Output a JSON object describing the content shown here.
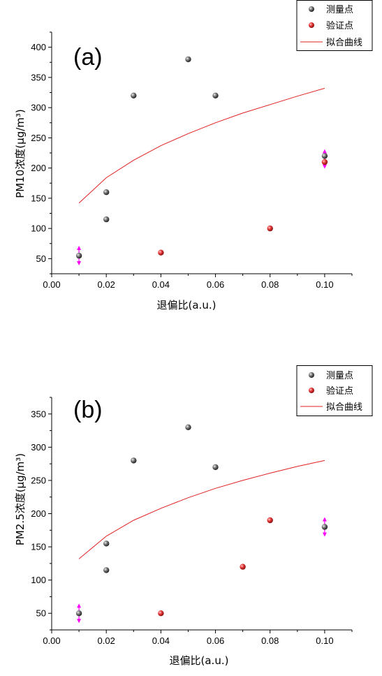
{
  "colors": {
    "measured": "#555555",
    "validation": "#e83a3a",
    "fit": "#e02020",
    "error": "#ff00ff"
  },
  "chart_data": [
    {
      "type": "scatter",
      "panel_label": "(a)",
      "xlabel": "退偏比(a.u.)",
      "ylabel": "PM10浓度(μg/m³)",
      "xlim": [
        0.0,
        0.11
      ],
      "ylim": [
        25,
        425
      ],
      "xticks": [
        "0.00",
        "0.02",
        "0.04",
        "0.06",
        "0.08",
        "0.10"
      ],
      "xtick_values": [
        0.0,
        0.02,
        0.04,
        0.06,
        0.08,
        0.1
      ],
      "yticks": [
        "50",
        "100",
        "150",
        "200",
        "250",
        "300",
        "350",
        "400"
      ],
      "ytick_values": [
        50,
        100,
        150,
        200,
        250,
        300,
        350,
        400
      ],
      "legend": {
        "position": "top-right",
        "entries": [
          "测量点",
          "验证点",
          "拟合曲线"
        ]
      },
      "series": [
        {
          "name": "测量点",
          "kind": "points",
          "x": [
            0.01,
            0.02,
            0.02,
            0.03,
            0.05,
            0.06,
            0.1
          ],
          "y": [
            55,
            115,
            160,
            320,
            380,
            320,
            220
          ]
        },
        {
          "name": "验证点",
          "kind": "points",
          "x": [
            0.04,
            0.08,
            0.1
          ],
          "y": [
            60,
            100,
            210
          ]
        },
        {
          "name": "拟合曲线",
          "kind": "curve",
          "x": [
            0.01,
            0.02,
            0.03,
            0.04,
            0.05,
            0.06,
            0.07,
            0.08,
            0.09,
            0.1
          ],
          "y": [
            142,
            184,
            213,
            237,
            257,
            275,
            291,
            305,
            319,
            332
          ]
        }
      ],
      "error_arrows": [
        {
          "x": 0.01,
          "y": 55
        },
        {
          "x": 0.1,
          "y": 215
        }
      ]
    },
    {
      "type": "scatter",
      "panel_label": "(b)",
      "xlabel": "退偏比(a.u.)",
      "ylabel": "PM2.5浓度(μg/m³)",
      "xlim": [
        0.0,
        0.11
      ],
      "ylim": [
        25,
        375
      ],
      "xticks": [
        "0.00",
        "0.02",
        "0.04",
        "0.06",
        "0.08",
        "0.10"
      ],
      "xtick_values": [
        0.0,
        0.02,
        0.04,
        0.06,
        0.08,
        0.1
      ],
      "yticks": [
        "50",
        "100",
        "150",
        "200",
        "250",
        "300",
        "350"
      ],
      "ytick_values": [
        50,
        100,
        150,
        200,
        250,
        300,
        350
      ],
      "legend": {
        "position": "top-right",
        "entries": [
          "测量点",
          "验证点",
          "拟合曲线"
        ]
      },
      "series": [
        {
          "name": "测量点",
          "kind": "points",
          "x": [
            0.01,
            0.02,
            0.02,
            0.03,
            0.05,
            0.06,
            0.1
          ],
          "y": [
            50,
            115,
            155,
            280,
            330,
            270,
            180
          ]
        },
        {
          "name": "验证点",
          "kind": "points",
          "x": [
            0.04,
            0.07,
            0.08
          ],
          "y": [
            50,
            120,
            190
          ]
        },
        {
          "name": "拟合曲线",
          "kind": "curve",
          "x": [
            0.01,
            0.02,
            0.03,
            0.04,
            0.05,
            0.06,
            0.07,
            0.08,
            0.09,
            0.1
          ],
          "y": [
            132,
            166,
            190,
            208,
            224,
            238,
            250,
            261,
            271,
            280
          ]
        }
      ],
      "error_arrows": [
        {
          "x": 0.01,
          "y": 50
        },
        {
          "x": 0.1,
          "y": 180
        }
      ]
    }
  ]
}
